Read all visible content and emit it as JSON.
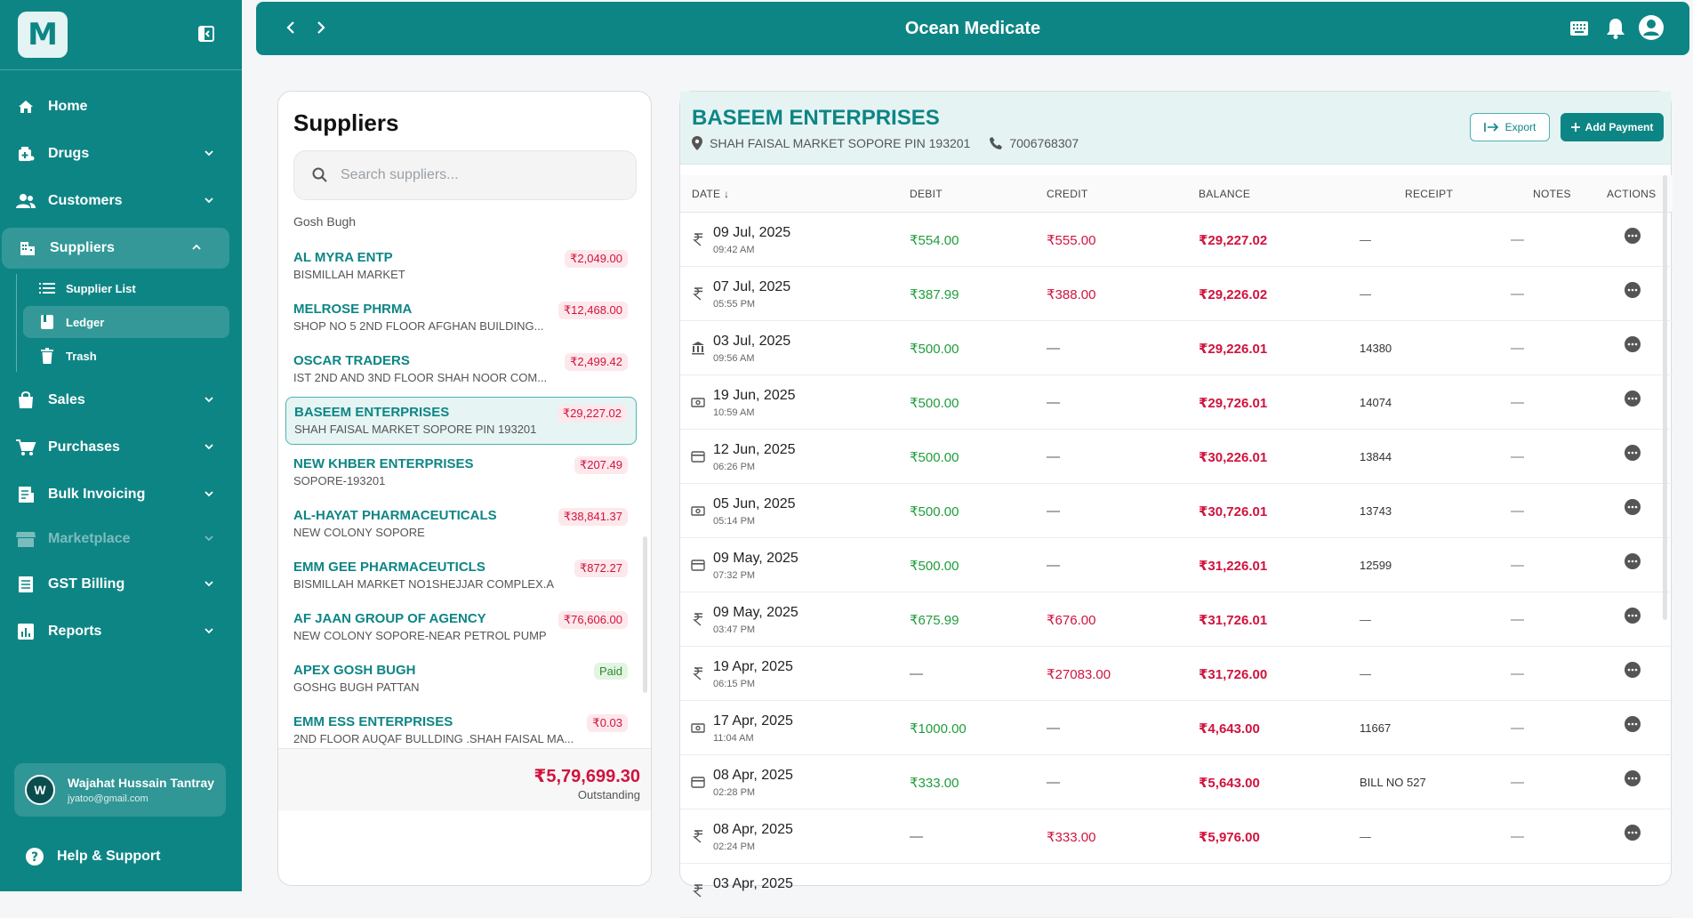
{
  "app": {
    "logo_letter": "M",
    "title": "Ocean Medicate"
  },
  "sidebar": {
    "items": [
      {
        "label": "Home",
        "icon": "home-icon"
      },
      {
        "label": "Drugs",
        "icon": "drugs-icon"
      },
      {
        "label": "Customers",
        "icon": "customers-icon"
      },
      {
        "label": "Suppliers",
        "icon": "suppliers-icon"
      },
      {
        "label": "Sales",
        "icon": "sales-icon"
      },
      {
        "label": "Purchases",
        "icon": "cart-icon"
      },
      {
        "label": "Bulk Invoicing",
        "icon": "invoice-icon"
      },
      {
        "label": "Marketplace",
        "icon": "store-icon"
      },
      {
        "label": "GST Billing",
        "icon": "billing-icon"
      },
      {
        "label": "Reports",
        "icon": "chart-icon"
      }
    ],
    "sub_items": [
      {
        "label": "Supplier List",
        "icon": "list-icon"
      },
      {
        "label": "Ledger",
        "icon": "ledger-icon"
      },
      {
        "label": "Trash",
        "icon": "trash-icon"
      }
    ],
    "user": {
      "initial": "W",
      "name": "Wajahat Hussain Tantray",
      "email": "jyatoo@gmail.com"
    },
    "help_label": "Help & Support"
  },
  "suppliers": {
    "title": "Suppliers",
    "search_placeholder": "Search suppliers...",
    "cut_item": "Gosh Bugh",
    "items": [
      {
        "name": "AL MYRA ENTP",
        "address": "BISMILLAH MARKET",
        "amount": "₹2,049.00"
      },
      {
        "name": "MELROSE PHRMA",
        "address": "SHOP NO 5 2ND FLOOR AFGHAN BUILDING...",
        "amount": "₹12,468.00"
      },
      {
        "name": "OSCAR TRADERS",
        "address": "IST 2ND AND 3ND FLOOR SHAH NOOR COM...",
        "amount": "₹2,499.42"
      },
      {
        "name": "BASEEM ENTERPRISES",
        "address": "SHAH FAISAL MARKET SOPORE PIN 193201",
        "amount": "₹29,227.02"
      },
      {
        "name": "NEW KHBER ENTERPRISES",
        "address": "SOPORE-193201",
        "amount": "₹207.49"
      },
      {
        "name": "AL-HAYAT PHARMACEUTICALS",
        "address": "NEW COLONY SOPORE",
        "amount": "₹38,841.37"
      },
      {
        "name": "EMM GEE PHARMACEUTICLS",
        "address": "BISMILLAH MARKET NO1SHEJJAR COMPLEX.A",
        "amount": "₹872.27"
      },
      {
        "name": "AF JAAN GROUP OF AGENCY",
        "address": "NEW COLONY SOPORE-NEAR PETROL PUMP",
        "amount": "₹76,606.00"
      },
      {
        "name": "APEX GOSH BUGH",
        "address": "GOSHG BUGH PATTAN",
        "amount": "Paid"
      },
      {
        "name": "EMM ESS ENTERPRISES",
        "address": "2ND FLOOR AUQAF BULLDING .SHAH FAISAL MA...",
        "amount": "₹0.03"
      }
    ],
    "outstanding_value": "₹5,79,699.30",
    "outstanding_label": "Outstanding"
  },
  "ledger": {
    "name": "BASEEM ENTERPRISES",
    "address": "SHAH FAISAL MARKET SOPORE PIN 193201",
    "phone": "7006768307",
    "export_label": "Export",
    "add_payment_label": "Add Payment",
    "columns": [
      "DATE ↓",
      "DEBIT",
      "CREDIT",
      "BALANCE",
      "RECEIPT",
      "NOTES",
      "ACTIONS"
    ],
    "rows": [
      {
        "icon": "rupee-icon",
        "date": "09 Jul, 2025",
        "time": "09:42 AM",
        "debit": "₹554.00",
        "credit": "₹555.00",
        "balance": "₹29,227.02",
        "receipt": "—",
        "notes": "—"
      },
      {
        "icon": "rupee-icon",
        "date": "07 Jul, 2025",
        "time": "05:55 PM",
        "debit": "₹387.99",
        "credit": "₹388.00",
        "balance": "₹29,226.02",
        "receipt": "—",
        "notes": "—"
      },
      {
        "icon": "bank-icon",
        "date": "03 Jul, 2025",
        "time": "09:56 AM",
        "debit": "₹500.00",
        "credit": "—",
        "balance": "₹29,226.01",
        "receipt": "14380",
        "notes": "—"
      },
      {
        "icon": "cash-icon",
        "date": "19 Jun, 2025",
        "time": "10:59 AM",
        "debit": "₹500.00",
        "credit": "—",
        "balance": "₹29,726.01",
        "receipt": "14074",
        "notes": "—"
      },
      {
        "icon": "card-icon",
        "date": "12 Jun, 2025",
        "time": "06:26 PM",
        "debit": "₹500.00",
        "credit": "—",
        "balance": "₹30,226.01",
        "receipt": "13844",
        "notes": "—"
      },
      {
        "icon": "cash-icon",
        "date": "05 Jun, 2025",
        "time": "05:14 PM",
        "debit": "₹500.00",
        "credit": "—",
        "balance": "₹30,726.01",
        "receipt": "13743",
        "notes": "—"
      },
      {
        "icon": "card-icon",
        "date": "09 May, 2025",
        "time": "07:32 PM",
        "debit": "₹500.00",
        "credit": "—",
        "balance": "₹31,226.01",
        "receipt": "12599",
        "notes": "—"
      },
      {
        "icon": "rupee-icon",
        "date": "09 May, 2025",
        "time": "03:47 PM",
        "debit": "₹675.99",
        "credit": "₹676.00",
        "balance": "₹31,726.01",
        "receipt": "—",
        "notes": "—"
      },
      {
        "icon": "rupee-icon",
        "date": "19 Apr, 2025",
        "time": "06:15 PM",
        "debit": "—",
        "credit": "₹27083.00",
        "balance": "₹31,726.00",
        "receipt": "—",
        "notes": "—"
      },
      {
        "icon": "cash-icon",
        "date": "17 Apr, 2025",
        "time": "11:04 AM",
        "debit": "₹1000.00",
        "credit": "—",
        "balance": "₹4,643.00",
        "receipt": "11667",
        "notes": "—"
      },
      {
        "icon": "card-icon",
        "date": "08 Apr, 2025",
        "time": "02:28 PM",
        "debit": "₹333.00",
        "credit": "—",
        "balance": "₹5,643.00",
        "receipt": "BILL NO 527",
        "notes": "—"
      },
      {
        "icon": "rupee-icon",
        "date": "08 Apr, 2025",
        "time": "02:24 PM",
        "debit": "—",
        "credit": "₹333.00",
        "balance": "₹5,976.00",
        "receipt": "—",
        "notes": "—"
      },
      {
        "icon": "rupee-icon",
        "date": "03 Apr, 2025",
        "time": "",
        "debit": "",
        "credit": "",
        "balance": "",
        "receipt": "",
        "notes": ""
      }
    ]
  },
  "colors": {
    "primary": "#0e8585",
    "debit": "#1f9d3a",
    "credit": "#d0133d"
  }
}
